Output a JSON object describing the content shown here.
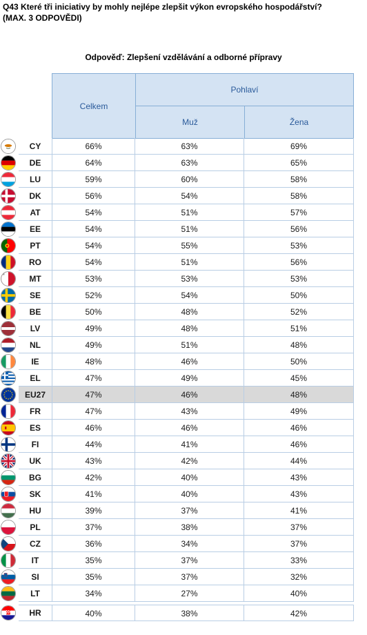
{
  "question": {
    "line1": "Q43 Které tři iniciativy by mohly nejlépe zlepšit výkon evropského hospodářství?",
    "line2": "(MAX. 3 ODPOVĚDI)"
  },
  "answer_label": "Odpověď: Zlepšení vzdělávání a odborné přípravy",
  "headers": {
    "total": "Celkem",
    "group": "Pohlaví",
    "male": "Muž",
    "female": "Žena"
  },
  "rows": [
    {
      "code": "CY",
      "total": "66%",
      "male": "63%",
      "female": "69%"
    },
    {
      "code": "DE",
      "total": "64%",
      "male": "63%",
      "female": "65%"
    },
    {
      "code": "LU",
      "total": "59%",
      "male": "60%",
      "female": "58%"
    },
    {
      "code": "DK",
      "total": "56%",
      "male": "54%",
      "female": "58%"
    },
    {
      "code": "AT",
      "total": "54%",
      "male": "51%",
      "female": "57%"
    },
    {
      "code": "EE",
      "total": "54%",
      "male": "51%",
      "female": "56%"
    },
    {
      "code": "PT",
      "total": "54%",
      "male": "55%",
      "female": "53%"
    },
    {
      "code": "RO",
      "total": "54%",
      "male": "51%",
      "female": "56%"
    },
    {
      "code": "MT",
      "total": "53%",
      "male": "53%",
      "female": "53%"
    },
    {
      "code": "SE",
      "total": "52%",
      "male": "54%",
      "female": "50%"
    },
    {
      "code": "BE",
      "total": "50%",
      "male": "48%",
      "female": "52%"
    },
    {
      "code": "LV",
      "total": "49%",
      "male": "48%",
      "female": "51%"
    },
    {
      "code": "NL",
      "total": "49%",
      "male": "51%",
      "female": "48%"
    },
    {
      "code": "IE",
      "total": "48%",
      "male": "46%",
      "female": "50%"
    },
    {
      "code": "EL",
      "total": "47%",
      "male": "49%",
      "female": "45%"
    },
    {
      "code": "EU27",
      "total": "47%",
      "male": "46%",
      "female": "48%"
    },
    {
      "code": "FR",
      "total": "47%",
      "male": "43%",
      "female": "49%"
    },
    {
      "code": "ES",
      "total": "46%",
      "male": "46%",
      "female": "46%"
    },
    {
      "code": "FI",
      "total": "44%",
      "male": "41%",
      "female": "46%"
    },
    {
      "code": "UK",
      "total": "43%",
      "male": "42%",
      "female": "44%"
    },
    {
      "code": "BG",
      "total": "42%",
      "male": "40%",
      "female": "43%"
    },
    {
      "code": "SK",
      "total": "41%",
      "male": "40%",
      "female": "43%"
    },
    {
      "code": "HU",
      "total": "39%",
      "male": "37%",
      "female": "41%"
    },
    {
      "code": "PL",
      "total": "37%",
      "male": "38%",
      "female": "37%"
    },
    {
      "code": "CZ",
      "total": "36%",
      "male": "34%",
      "female": "37%"
    },
    {
      "code": "IT",
      "total": "35%",
      "male": "37%",
      "female": "33%"
    },
    {
      "code": "SI",
      "total": "35%",
      "male": "37%",
      "female": "32%"
    },
    {
      "code": "LT",
      "total": "34%",
      "male": "27%",
      "female": "40%"
    },
    {
      "code": "HR",
      "total": "40%",
      "male": "38%",
      "female": "42%"
    }
  ],
  "highlight_row": "EU27",
  "colors": {
    "header_bg": "#d4e3f3",
    "header_text": "#2a5a9a",
    "highlight_bg": "#d9d9d9"
  }
}
